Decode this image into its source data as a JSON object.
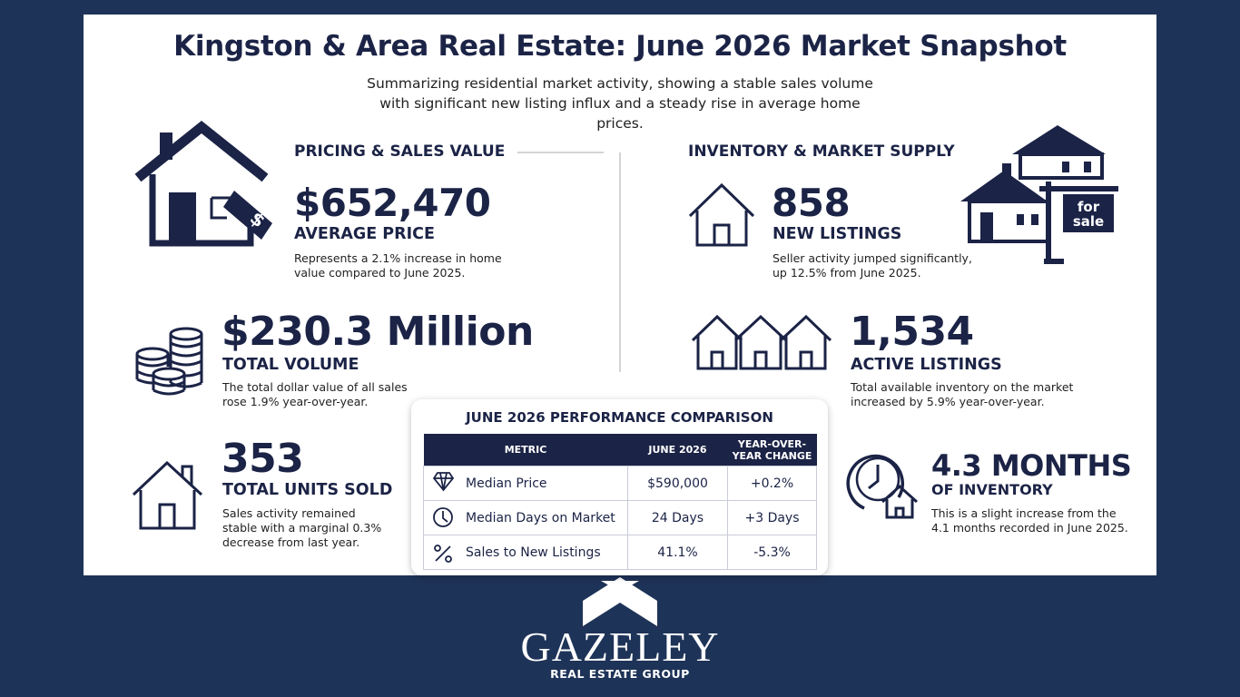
{
  "header": {
    "title": "Kingston & Area Real Estate: June 2026 Market Snapshot",
    "subtitle": "Summarizing residential market activity, showing a stable sales volume with significant new listing influx and a steady rise in average home prices."
  },
  "pricing": {
    "heading": "PRICING & SALES VALUE",
    "stats": [
      {
        "value": "$652,470",
        "label": "AVERAGE PRICE",
        "note": "Represents a 2.1% increase in home value compared to June 2025."
      },
      {
        "value": "$230.3 Million",
        "label": "TOTAL VOLUME",
        "note": "The total dollar value of all sales rose 1.9% year-over-year."
      },
      {
        "value": "353",
        "label": "TOTAL UNITS SOLD",
        "note": "Sales activity remained stable with a marginal 0.3% decrease from last year."
      }
    ]
  },
  "inventory": {
    "heading": "INVENTORY & MARKET SUPPLY",
    "sign": [
      "for",
      "sale"
    ],
    "stats": [
      {
        "value": "858",
        "label": "NEW LISTINGS",
        "note": "Seller activity jumped significantly, up 12.5% from June 2025."
      },
      {
        "value": "1,534",
        "label": "ACTIVE LISTINGS",
        "note": "Total available inventory on the market increased by 5.9% year-over-year."
      },
      {
        "value": "4.3 MONTHS",
        "label": "OF INVENTORY",
        "note": "This is a slight increase from the 4.1 months recorded in June 2025."
      }
    ]
  },
  "table": {
    "title": "JUNE 2026 PERFORMANCE COMPARISON",
    "columns": [
      "METRIC",
      "JUNE 2026",
      "YEAR-OVER-YEAR CHANGE"
    ],
    "rows": [
      [
        "Median Price",
        "$590,000",
        "+0.2%"
      ],
      [
        "Median Days on Market",
        "24 Days",
        "+3 Days"
      ],
      [
        "Sales to New Listings",
        "41.1%",
        "-5.3%"
      ]
    ]
  },
  "footer": {
    "brand": "GAZELEY",
    "tagline": "REAL ESTATE GROUP"
  }
}
